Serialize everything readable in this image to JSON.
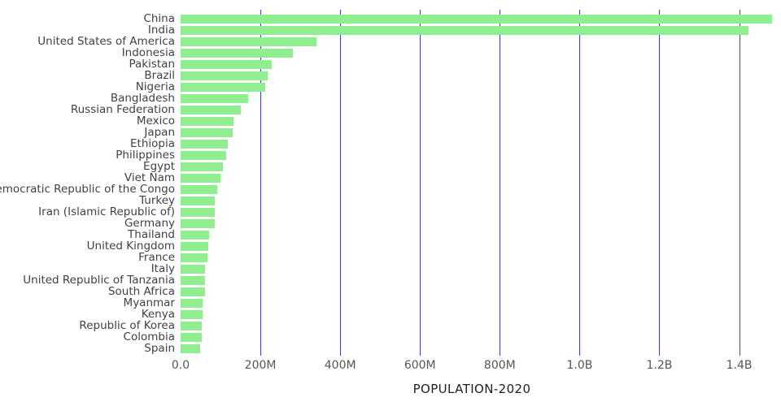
{
  "chart_data": {
    "type": "bar",
    "orientation": "horizontal",
    "xlabel": "POPULATION-2020",
    "ylabel": "",
    "xlim": [
      0,
      1460
    ],
    "unit": "millions",
    "bar_color": "#90ee90",
    "grid_color": "#3d3dd8",
    "legend": null,
    "categories": [
      "China",
      "India",
      "United States of America",
      "Indonesia",
      "Pakistan",
      "Brazil",
      "Nigeria",
      "Bangladesh",
      "Russian Federation",
      "Mexico",
      "Japan",
      "Ethiopia",
      "Philippines",
      "Egypt",
      "Viet Nam",
      "Democratic Republic of the Congo",
      "Turkey",
      "Iran (Islamic Republic of)",
      "Germany",
      "Thailand",
      "United Kingdom",
      "France",
      "Italy",
      "United Republic of Tanzania",
      "South Africa",
      "Myanmar",
      "Kenya",
      "Republic of Korea",
      "Colombia",
      "Spain"
    ],
    "values": [
      1439,
      1380,
      331,
      273,
      221,
      212,
      206,
      165,
      146,
      129,
      126,
      115,
      110,
      102,
      97,
      90,
      84,
      84,
      84,
      70,
      68,
      65,
      60,
      60,
      59,
      54,
      54,
      51,
      51,
      47
    ],
    "x_ticks": [
      {
        "value": 0,
        "label": "0.0"
      },
      {
        "value": 200,
        "label": "200M"
      },
      {
        "value": 400,
        "label": "400M"
      },
      {
        "value": 600,
        "label": "600M"
      },
      {
        "value": 800,
        "label": "800M"
      },
      {
        "value": 1000,
        "label": "1.0B"
      },
      {
        "value": 1200,
        "label": "1.2B"
      },
      {
        "value": 1400,
        "label": "1.4B"
      }
    ]
  }
}
